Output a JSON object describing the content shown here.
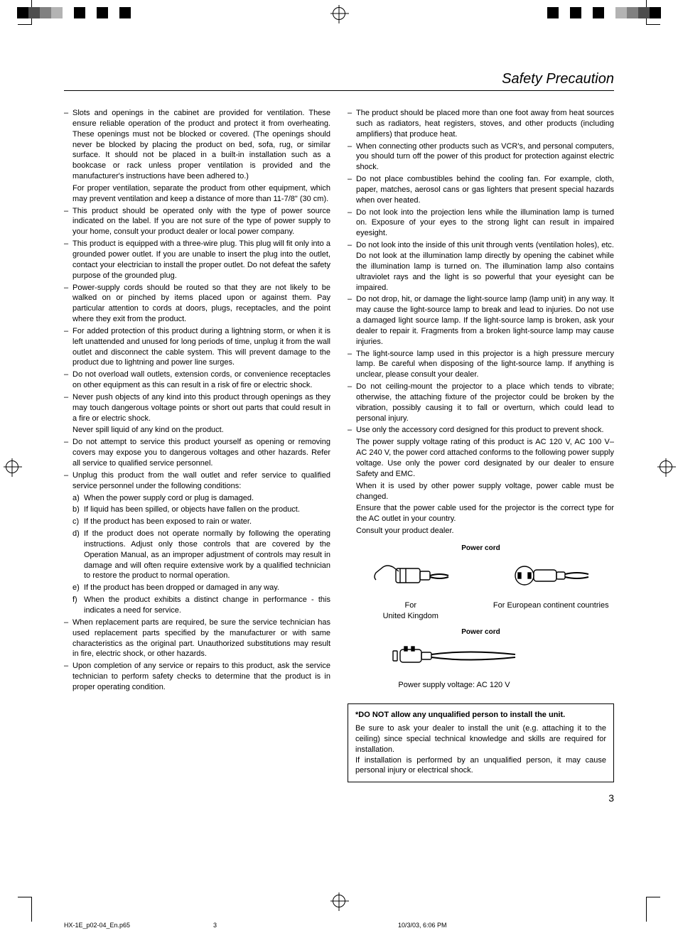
{
  "page": {
    "title": "Safety Precaution",
    "number": "3"
  },
  "colorbar": {
    "left": [
      "#000000",
      "#4d4d4d",
      "#808080",
      "#b3b3b3",
      "#ffffff",
      "#000000",
      "#ffffff",
      "#000000",
      "#ffffff",
      "#000000",
      "#ffffff"
    ],
    "right": [
      "#ffffff",
      "#000000",
      "#ffffff",
      "#000000",
      "#ffffff",
      "#000000",
      "#ffffff",
      "#b3b3b3",
      "#808080",
      "#4d4d4d",
      "#000000"
    ]
  },
  "left_col": [
    {
      "type": "bullet",
      "text": "Slots and openings in the cabinet are provided for ventilation. These ensure reliable operation of the product and protect it from overheating. These openings must not be blocked or covered. (The openings should never be blocked by placing the product on bed, sofa, rug, or similar surface. It should not be placed in a built-in installation such as a bookcase or rack unless proper ventilation is provided and the manufacturer's instructions have been adhered to.)"
    },
    {
      "type": "cont",
      "text": "For proper ventilation, separate the product from other equipment, which may prevent ventilation and keep a distance of more than 11-7/8\" (30 cm)."
    },
    {
      "type": "bullet",
      "text": "This product should be operated only with the type of power source indicated on the label. If you are not sure of the type of power supply to your home, consult your product dealer or local power company."
    },
    {
      "type": "bullet",
      "text": "This product is equipped with a three-wire plug. This plug will fit only into a grounded power outlet. If you are unable to insert the plug into the outlet, contact your electrician to install the proper outlet. Do not defeat the safety purpose of the grounded plug."
    },
    {
      "type": "bullet",
      "text": "Power-supply cords should be routed so that they are not likely to be walked on or pinched by items placed upon or against them. Pay particular attention to cords at doors, plugs, receptacles, and the point where they exit from the product."
    },
    {
      "type": "bullet",
      "text": "For added protection of this product during a lightning storm, or when it is left unattended and unused for long periods of time, unplug it from the wall outlet and disconnect the cable system. This will prevent damage to the product due to lightning and power line surges."
    },
    {
      "type": "bullet",
      "text": "Do not overload wall outlets, extension cords, or convenience receptacles on other equipment as this can result in a risk of fire or electric shock."
    },
    {
      "type": "bullet",
      "text": "Never push objects of any kind into this product through openings as they may touch dangerous voltage points or short out parts that could result in a fire or electric shock."
    },
    {
      "type": "cont",
      "text": "Never spill liquid of any kind on the product."
    },
    {
      "type": "bullet",
      "text": "Do not attempt to service this product yourself as opening or removing covers may expose you to dangerous voltages and other hazards. Refer all service to qualified service personnel."
    },
    {
      "type": "bullet",
      "text": "Unplug this product from the wall outlet and refer service to qualified service personnel under the following conditions:"
    },
    {
      "type": "sub",
      "letter": "a)",
      "text": "When the power supply cord or plug is damaged."
    },
    {
      "type": "sub",
      "letter": "b)",
      "text": "If liquid has been spilled, or objects have fallen on the product."
    },
    {
      "type": "sub",
      "letter": "c)",
      "text": "If the product has been exposed to rain or water."
    },
    {
      "type": "sub",
      "letter": "d)",
      "text": "If the product does not operate normally by following the operating instructions. Adjust only those controls that are covered by the Operation Manual, as an improper adjustment of controls may result in damage and will often require extensive work by a qualified technician to restore the product to normal operation."
    },
    {
      "type": "sub",
      "letter": "e)",
      "text": "If the product has been dropped or damaged in any way."
    },
    {
      "type": "sub",
      "letter": "f)",
      "text": "When the product exhibits a distinct change in performance - this indicates a need for service."
    },
    {
      "type": "bullet",
      "text": "When replacement parts are required, be sure the service technician has used replacement parts specified by the manufacturer or with same characteristics as the original part. Unauthorized substitutions may result in fire, electric shock, or other hazards."
    },
    {
      "type": "bullet",
      "text": "Upon completion of any service or repairs to this product, ask the service technician to perform safety checks to determine that the product is in proper operating condition."
    }
  ],
  "right_col": [
    {
      "type": "bullet",
      "text": "The product should be placed more than one foot away from heat sources such as radiators, heat registers, stoves, and other products (including amplifiers) that produce heat."
    },
    {
      "type": "bullet",
      "text": "When connecting other products such as VCR's, and personal computers, you should turn off the power of this product for protection against electric shock."
    },
    {
      "type": "bullet",
      "text": "Do not place combustibles behind the cooling fan. For example, cloth, paper, matches, aerosol cans or gas lighters that present special hazards when over heated."
    },
    {
      "type": "bullet",
      "text": "Do not look into the projection lens while the illumination lamp is turned on. Exposure of your eyes to the strong light can result in impaired eyesight."
    },
    {
      "type": "bullet",
      "text": "Do not look into the inside of this unit through vents (ventilation holes), etc. Do not look at the illumination lamp directly by opening the cabinet while the illumination lamp is turned on. The illumination lamp also contains ultraviolet rays and the light is so powerful that your eyesight can be impaired."
    },
    {
      "type": "bullet",
      "text": "Do not drop, hit, or damage the light-source lamp (lamp unit) in any way. It may cause the light-source lamp to break and lead to injuries. Do not use a damaged light source lamp. If the light-source lamp is broken, ask your dealer to repair it. Fragments from a broken light-source lamp may cause injuries."
    },
    {
      "type": "bullet",
      "text": "The light-source lamp used in this projector is a high pressure mercury lamp. Be careful when disposing of the light-source lamp. If anything is unclear, please consult your dealer."
    },
    {
      "type": "bullet",
      "text": "Do not ceiling-mount the projector to a place which tends to vibrate; otherwise, the attaching fixture of the projector could be broken by the vibration, possibly causing it to fall or overturn, which could lead to personal injury."
    },
    {
      "type": "bullet",
      "text": "Use only the accessory cord designed for this product to prevent shock."
    },
    {
      "type": "cont",
      "text": "The power supply voltage rating of this product is AC 120 V, AC 100 V– AC 240 V, the power cord attached conforms to the following power supply voltage. Use only the power cord designated by our dealer to ensure Safety and EMC."
    },
    {
      "type": "cont",
      "text": "When it is used by other power supply voltage, power cable must be changed."
    },
    {
      "type": "cont",
      "text": "Ensure that the power cable used for the projector is the correct type for the AC outlet in your country."
    },
    {
      "type": "cont",
      "text": "Consult your product dealer."
    }
  ],
  "cords": {
    "label1": "Power cord",
    "uk_caption": "For United Kingdom",
    "eu_caption": "For European continent countries",
    "label2": "Power cord",
    "us_caption": "Power supply voltage: AC 120 V"
  },
  "warning": {
    "title": "*DO NOT allow any unqualified person to install the unit.",
    "p1": "Be sure to ask your dealer to install the unit (e.g. attaching it to the ceiling) since special technical knowledge and skills are required for installation.",
    "p2": "If installation is performed by an unqualified person, it may cause personal injury or electrical shock."
  },
  "footer": {
    "file": "HX-1E_p02-04_En.p65",
    "page": "3",
    "date": "10/3/03, 6:06 PM"
  }
}
